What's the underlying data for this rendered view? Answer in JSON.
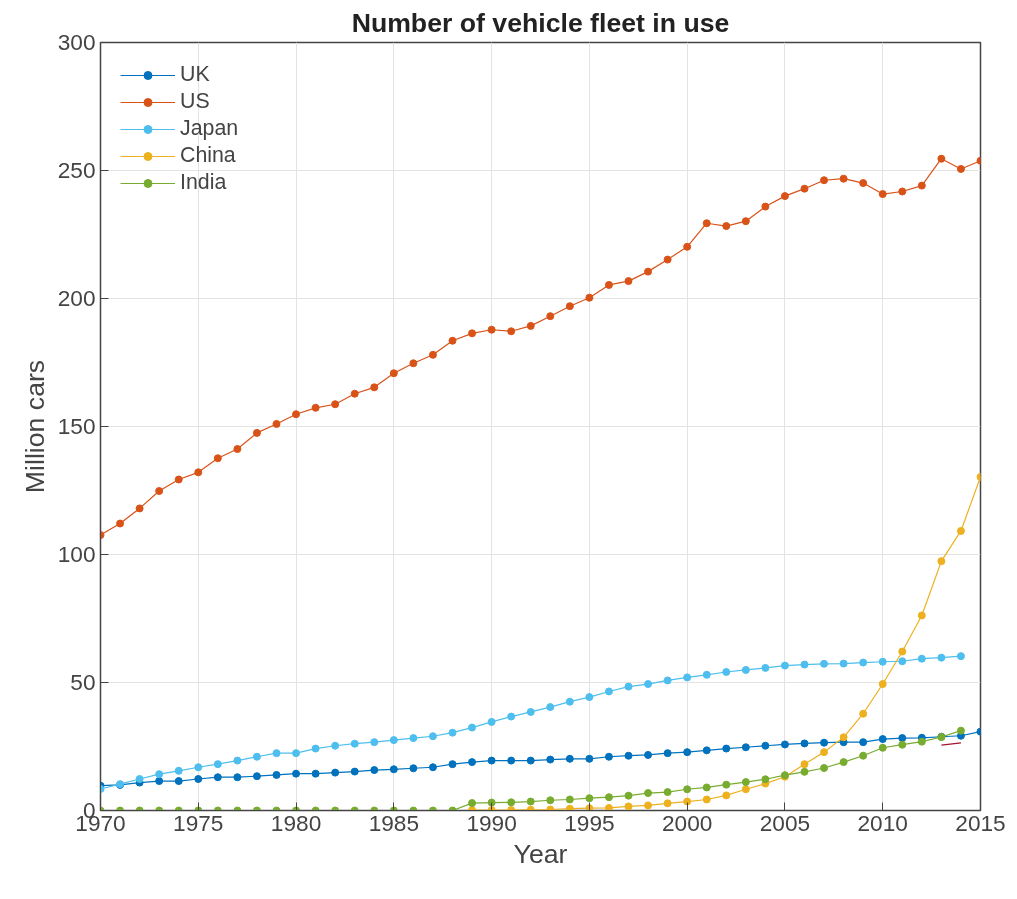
{
  "chart_data": {
    "type": "line",
    "title": "Number of vehicle fleet in use",
    "xlabel": "Year",
    "ylabel": "Million cars",
    "x": [
      1970,
      1971,
      1972,
      1973,
      1974,
      1975,
      1976,
      1977,
      1978,
      1979,
      1980,
      1981,
      1982,
      1983,
      1984,
      1985,
      1986,
      1987,
      1988,
      1989,
      1990,
      1991,
      1992,
      1993,
      1994,
      1995,
      1996,
      1997,
      1998,
      1999,
      2000,
      2001,
      2002,
      2003,
      2004,
      2005,
      2006,
      2007,
      2008,
      2009,
      2010,
      2011,
      2012,
      2013,
      2014,
      2015
    ],
    "xlim": [
      1970,
      2015
    ],
    "xticks": [
      1970,
      1975,
      1980,
      1985,
      1990,
      1995,
      2000,
      2005,
      2010,
      2015
    ],
    "ylim": [
      0,
      300
    ],
    "yticks": [
      0,
      50,
      100,
      150,
      200,
      250,
      300
    ],
    "grid": true,
    "legend": "top left",
    "marker": "circle",
    "line_style": "solid",
    "series": [
      {
        "name": "UK",
        "color": "#0072bd",
        "values": [
          9.7,
          10.0,
          10.9,
          11.5,
          11.5,
          12.3,
          13.0,
          13.0,
          13.4,
          13.9,
          14.4,
          14.4,
          14.8,
          15.2,
          15.8,
          16.1,
          16.5,
          16.9,
          18.1,
          18.9,
          19.5,
          19.5,
          19.5,
          19.9,
          20.2,
          20.2,
          21.0,
          21.4,
          21.7,
          22.4,
          22.8,
          23.5,
          24.2,
          24.7,
          25.3,
          25.8,
          26.2,
          26.5,
          26.7,
          26.7,
          27.9,
          28.3,
          28.4,
          28.8,
          29.2,
          30.8
        ]
      },
      {
        "name": "US",
        "color": "#d95319",
        "values": [
          107.6,
          112.1,
          118.0,
          124.8,
          129.3,
          132.1,
          137.6,
          141.2,
          147.5,
          151.0,
          154.8,
          157.3,
          158.7,
          162.8,
          165.3,
          170.8,
          174.7,
          178.0,
          183.5,
          186.4,
          187.8,
          187.2,
          189.3,
          193.1,
          197.0,
          200.3,
          205.3,
          206.8,
          210.5,
          215.2,
          220.2,
          229.4,
          228.3,
          230.2,
          235.9,
          240.0,
          242.9,
          246.2,
          246.8,
          245.1,
          240.8,
          241.8,
          244.1,
          254.6,
          250.6,
          253.8
        ]
      },
      {
        "name": "Japan",
        "color": "#4dbeee",
        "values": [
          8.4,
          10.3,
          12.3,
          14.2,
          15.5,
          16.9,
          18.1,
          19.5,
          21.0,
          22.4,
          22.4,
          24.2,
          25.3,
          26.1,
          26.7,
          27.5,
          28.3,
          29.0,
          30.4,
          32.4,
          34.6,
          36.7,
          38.5,
          40.4,
          42.5,
          44.3,
          46.5,
          48.4,
          49.4,
          50.8,
          52.0,
          53.0,
          54.1,
          54.9,
          55.7,
          56.6,
          57.0,
          57.3,
          57.4,
          57.8,
          58.1,
          58.3,
          59.3,
          59.7,
          60.3,
          null
        ]
      },
      {
        "name": "China",
        "color": "#edb120",
        "values": [
          null,
          null,
          null,
          null,
          null,
          null,
          null,
          null,
          null,
          null,
          null,
          null,
          null,
          null,
          null,
          null,
          null,
          null,
          null,
          0.2,
          0.2,
          0.2,
          0.3,
          0.4,
          0.7,
          0.9,
          1.0,
          1.6,
          2.0,
          2.8,
          3.5,
          4.3,
          5.9,
          8.3,
          10.5,
          13.2,
          18.1,
          22.8,
          28.6,
          37.8,
          49.4,
          62.1,
          76.2,
          97.4,
          109.2,
          130.3
        ]
      },
      {
        "name": "India",
        "color": "#77ac30",
        "values": [
          0,
          0,
          0,
          0,
          0,
          0,
          0,
          0,
          0,
          0,
          0,
          0,
          0,
          0,
          0,
          0,
          0,
          0,
          0,
          2.9,
          3.1,
          3.2,
          3.5,
          4.0,
          4.3,
          4.8,
          5.2,
          5.8,
          6.8,
          7.2,
          8.3,
          9.0,
          10.1,
          11.1,
          12.2,
          13.8,
          15.1,
          16.6,
          18.9,
          21.4,
          24.5,
          25.7,
          26.9,
          28.7,
          31.2,
          null
        ]
      },
      {
        "color": "#a2142f",
        "marker": "none",
        "x": [
          2013,
          2014
        ],
        "values": [
          25.5,
          26.4
        ]
      }
    ]
  }
}
